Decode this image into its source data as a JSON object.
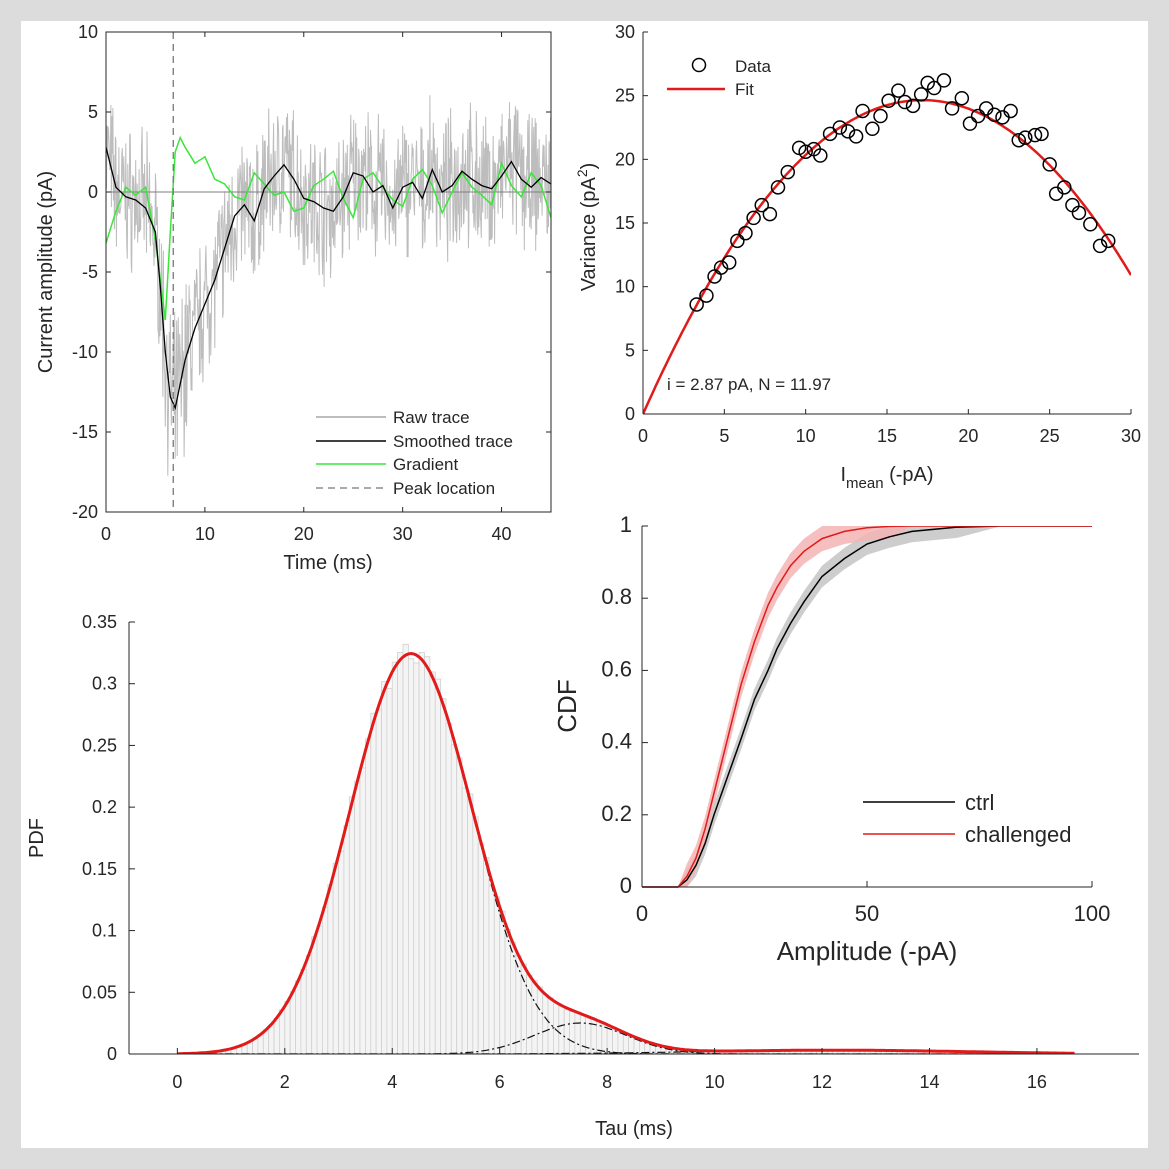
{
  "colors": {
    "raw": "#bdbdbd",
    "smoothed": "#000000",
    "gradient": "#39e639",
    "fit": "#e11a1a",
    "ctrl": "#000000",
    "challenged": "#e11a1a",
    "ctrl_band": "#c4c4c4",
    "challenged_band": "#f4b4b4",
    "bars": "#d0d0d0"
  },
  "chart_data": [
    {
      "id": "trace",
      "type": "line",
      "xlabel": "Time (ms)",
      "ylabel": "Current amplitude (pA)",
      "xlim": [
        0,
        45
      ],
      "ylim": [
        -20,
        10
      ],
      "xticks": [
        "0",
        "10",
        "20",
        "30",
        "40"
      ],
      "yticks": [
        "10",
        "5",
        "0",
        "-5",
        "-10",
        "-15",
        "-20"
      ],
      "legend_position": "bottom-right",
      "peak_location_x": 6.8,
      "series": [
        {
          "name": "Raw trace",
          "style": "solid"
        },
        {
          "name": "Smoothed trace",
          "style": "solid",
          "x": [
            0,
            1,
            2,
            3,
            4,
            5,
            5.5,
            6,
            6.5,
            7,
            7.5,
            8,
            9,
            10,
            11,
            12,
            13,
            14,
            15,
            16,
            17,
            18,
            19,
            20,
            21,
            22,
            23,
            24,
            25,
            26,
            27,
            28,
            29,
            30,
            31,
            32,
            33,
            34,
            35,
            36,
            37,
            38,
            39,
            40,
            41,
            42,
            43,
            44,
            45
          ],
          "y": [
            2.8,
            0.3,
            -0.3,
            -0.5,
            -1,
            -2.5,
            -6,
            -10,
            -12.8,
            -13.5,
            -12,
            -10.5,
            -8.5,
            -7,
            -5.5,
            -3.5,
            -1.5,
            -0.8,
            -1.8,
            0.2,
            1,
            1.7,
            0.8,
            -0.4,
            -0.6,
            -1,
            -1.2,
            -0.3,
            1.2,
            1,
            0,
            0.4,
            -1,
            0.3,
            0.6,
            -0.4,
            1.4,
            0,
            0.4,
            1.3,
            0.8,
            0.4,
            0.2,
            1,
            1.9,
            0.8,
            0.3,
            0.9,
            0.5
          ]
        },
        {
          "name": "Gradient",
          "style": "solid",
          "x": [
            0,
            1,
            2,
            3,
            4,
            5,
            6,
            6.5,
            7,
            7.5,
            8,
            9,
            10,
            11,
            12,
            13,
            14,
            15,
            16,
            17,
            18,
            19,
            20,
            21,
            22,
            23,
            24,
            25,
            26,
            27,
            28,
            29,
            30,
            31,
            32,
            33,
            34,
            35,
            36,
            37,
            38,
            39,
            40,
            41,
            42,
            43,
            44,
            45
          ],
          "y": [
            -3.2,
            -1.2,
            0.3,
            -0.2,
            0.3,
            -3,
            -8,
            -2.5,
            2.5,
            3.4,
            2.8,
            1.8,
            2.2,
            0.8,
            0.5,
            -0.3,
            -0.5,
            1.2,
            0.5,
            -0.2,
            0,
            -1.2,
            -1,
            0.4,
            0.8,
            1.3,
            -0.4,
            -1.6,
            0.8,
            1.2,
            0.3,
            -0.5,
            -0.9,
            0.8,
            1.4,
            0.4,
            -1.3,
            0,
            1.2,
            0.3,
            -0.2,
            -0.8,
            1.8,
            0.4,
            -0.3,
            1.2,
            0.4,
            -1.6
          ]
        },
        {
          "name": "Peak location",
          "style": "dashed"
        }
      ]
    },
    {
      "id": "variance",
      "type": "scatter",
      "xlabel_main": "I",
      "xlabel_sub": "mean",
      "xlabel_rest": " (-pA)",
      "ylabel_main": "Variance (pA",
      "ylabel_sup": "2",
      "ylabel_end": ")",
      "xlim": [
        0,
        30
      ],
      "ylim": [
        0,
        30
      ],
      "xticks": [
        "0",
        "5",
        "10",
        "15",
        "20",
        "25",
        "30"
      ],
      "yticks": [
        "30",
        "25",
        "20",
        "15",
        "10",
        "5",
        "0"
      ],
      "legend_position": "top-left",
      "annotation": "i = 2.87 pA, N = 11.97",
      "fit": {
        "name": "Fit",
        "i": 2.87,
        "N": 11.97
      },
      "points": {
        "name": "Data",
        "x": [
          3.3,
          3.9,
          4.4,
          4.8,
          5.3,
          5.8,
          6.3,
          6.8,
          7.3,
          7.8,
          8.3,
          8.9,
          9.6,
          10.0,
          10.5,
          10.9,
          11.5,
          12.1,
          12.6,
          13.1,
          13.5,
          14.1,
          14.6,
          15.1,
          15.7,
          16.1,
          16.6,
          17.1,
          17.5,
          17.9,
          18.5,
          19.0,
          19.6,
          20.1,
          20.6,
          21.1,
          21.6,
          22.1,
          22.6,
          23.1,
          23.5,
          24.1,
          24.5,
          25.0,
          25.4,
          25.9,
          26.4,
          26.8,
          27.5,
          28.1,
          28.6
        ],
        "y": [
          8.6,
          9.3,
          10.8,
          11.5,
          11.9,
          13.6,
          14.2,
          15.4,
          16.4,
          15.7,
          17.8,
          19.0,
          20.9,
          20.6,
          20.8,
          20.3,
          22.0,
          22.5,
          22.2,
          21.8,
          23.8,
          22.4,
          23.4,
          24.6,
          25.4,
          24.5,
          24.2,
          25.1,
          26.0,
          25.6,
          26.2,
          24.0,
          24.8,
          22.8,
          23.4,
          24.0,
          23.5,
          23.3,
          23.8,
          21.5,
          21.7,
          21.9,
          22.0,
          19.6,
          17.3,
          17.8,
          16.4,
          15.8,
          14.9,
          13.2,
          13.6
        ]
      }
    },
    {
      "id": "pdf",
      "type": "histogram",
      "xlabel": "Tau (ms)",
      "ylabel": "PDF",
      "xlim": [
        -0.9,
        17.9
      ],
      "ylim": [
        0,
        0.35
      ],
      "xticks": [
        "0",
        "2",
        "4",
        "6",
        "8",
        "10",
        "12",
        "14",
        "16"
      ],
      "yticks": [
        "0.35",
        "0.3",
        "0.25",
        "0.2",
        "0.15",
        "0.1",
        "0.05",
        "0"
      ],
      "bin_range": [
        0,
        16.7
      ],
      "bin_width": 0.1,
      "components": [
        {
          "weight": 0.927,
          "mean": 4.35,
          "sd": 1.14
        },
        {
          "weight": 0.0535,
          "mean": 7.5,
          "sd": 0.85
        },
        {
          "weight": 0.0195,
          "mean": 12.2,
          "sd": 2.5
        }
      ]
    },
    {
      "id": "cdf",
      "type": "line",
      "xlabel": "Amplitude (-pA)",
      "ylabel": "CDF",
      "xlim": [
        0,
        100
      ],
      "ylim": [
        0,
        1
      ],
      "xticks": [
        "0",
        "50",
        "100"
      ],
      "yticks": [
        "1",
        "0.8",
        "0.6",
        "0.4",
        "0.2",
        "0"
      ],
      "legend_position": "bottom-right",
      "series": [
        {
          "name": "ctrl",
          "x": [
            0,
            8,
            10,
            12,
            14,
            16,
            18,
            20,
            22,
            25,
            28,
            30,
            33,
            36,
            40,
            45,
            50,
            55,
            60,
            70,
            80,
            100
          ],
          "y": [
            0,
            0,
            0.02,
            0.06,
            0.12,
            0.2,
            0.27,
            0.34,
            0.41,
            0.52,
            0.6,
            0.66,
            0.73,
            0.79,
            0.86,
            0.91,
            0.95,
            0.97,
            0.985,
            0.997,
            1,
            1
          ]
        },
        {
          "name": "challenged",
          "x": [
            0,
            8,
            10,
            12,
            14,
            16,
            18,
            20,
            22,
            25,
            28,
            30,
            33,
            36,
            40,
            45,
            50,
            55,
            60,
            70,
            100
          ],
          "y": [
            0,
            0,
            0.03,
            0.08,
            0.16,
            0.26,
            0.36,
            0.46,
            0.56,
            0.68,
            0.78,
            0.83,
            0.89,
            0.93,
            0.965,
            0.985,
            0.995,
            0.999,
            1,
            1,
            1
          ]
        }
      ]
    }
  ]
}
